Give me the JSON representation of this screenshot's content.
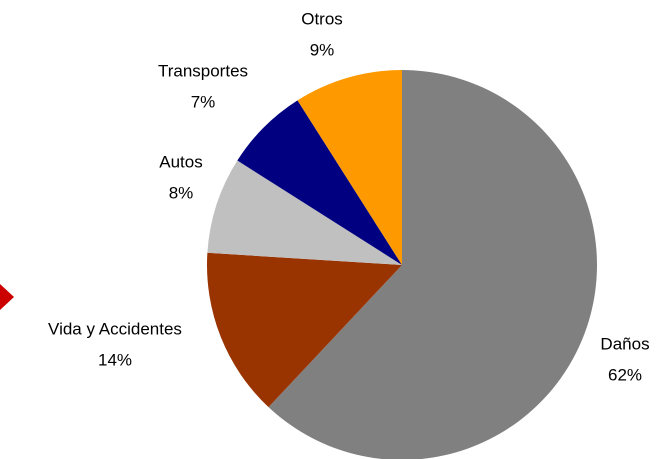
{
  "chart_data": {
    "type": "pie",
    "categories": [
      "Daños",
      "Vida y Accidentes",
      "Autos",
      "Transportes",
      "Otros"
    ],
    "values": [
      62,
      14,
      8,
      7,
      9
    ],
    "value_labels": [
      "62%",
      "14%",
      "8%",
      "7%",
      "9%"
    ],
    "colors": [
      "#808080",
      "#993300",
      "#c0c0c0",
      "#000080",
      "#ff9900"
    ]
  }
}
